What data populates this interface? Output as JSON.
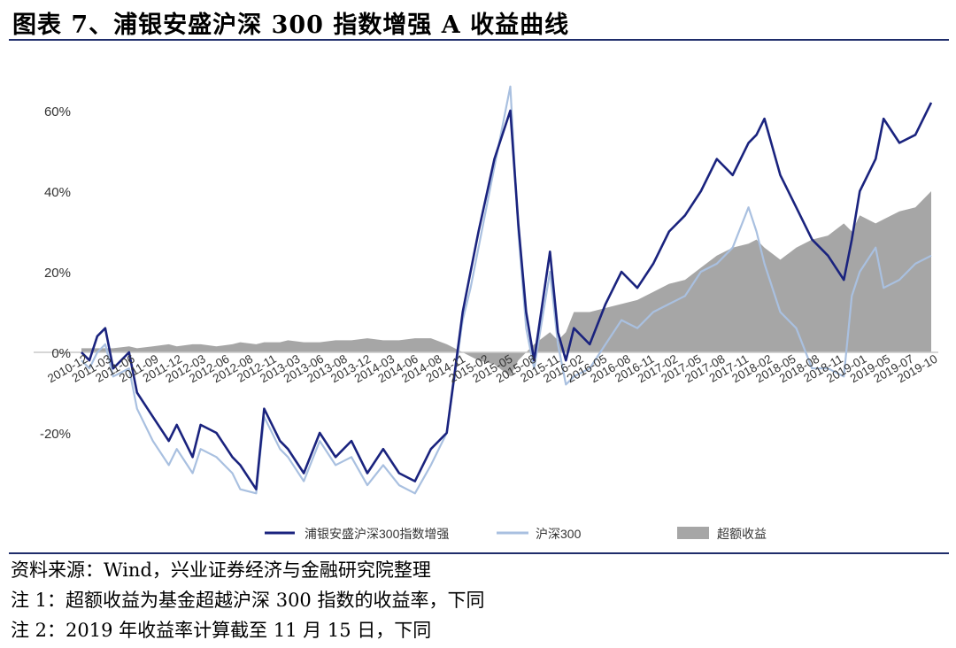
{
  "figure": {
    "title": "图表 7、浦银安盛沪深 300 指数增强 A 收益曲线"
  },
  "notes": {
    "source": "资料来源：Wind，兴业证券经济与金融研究院整理",
    "note1": "注 1：超额收益为基金超越沪深 300 指数的收益率，下同",
    "note2": "注 2：2019 年收益率计算截至 11 月 15 日，下同"
  },
  "colors": {
    "fund": "#1a237e",
    "index": "#a9c0e0",
    "excess": "#a6a6a6"
  },
  "chart_data": {
    "type": "line",
    "title": "",
    "xlabel": "",
    "ylabel": "",
    "ylim": [
      -40,
      70
    ],
    "yticks": [
      60,
      40,
      20,
      0,
      -20
    ],
    "ytick_labels": [
      "60%",
      "40%",
      "20%",
      "0%",
      "-20%"
    ],
    "grid": false,
    "legend_position": "bottom",
    "x_tick_labels": [
      "2010-12",
      "2011-03",
      "2011-06",
      "2011-09",
      "2011-12",
      "2012-03",
      "2012-06",
      "2012-08",
      "2012-11",
      "2013-03",
      "2013-06",
      "2013-08",
      "2013-12",
      "2014-03",
      "2014-06",
      "2014-08",
      "2014-11",
      "2015-02",
      "2015-05",
      "2015-08",
      "2015-11",
      "2016-02",
      "2016-05",
      "2016-08",
      "2016-11",
      "2017-02",
      "2017-05",
      "2017-08",
      "2017-11",
      "2018-02",
      "2018-05",
      "2018-08",
      "2018-11",
      "2019-01",
      "2019-05",
      "2019-07",
      "2019-10"
    ],
    "x": [
      "2010-12",
      "2011-01",
      "2011-02",
      "2011-03",
      "2011-04",
      "2011-06",
      "2011-07",
      "2011-09",
      "2011-11",
      "2011-12",
      "2012-02",
      "2012-03",
      "2012-05",
      "2012-07",
      "2012-08",
      "2012-10",
      "2012-11",
      "2013-01",
      "2013-02",
      "2013-04",
      "2013-06",
      "2013-08",
      "2013-10",
      "2013-12",
      "2014-02",
      "2014-04",
      "2014-06",
      "2014-08",
      "2014-10",
      "2014-11",
      "2014-12",
      "2015-01",
      "2015-02",
      "2015-04",
      "2015-06",
      "2015-07",
      "2015-08",
      "2015-09",
      "2015-11",
      "2015-12",
      "2016-01",
      "2016-02",
      "2016-04",
      "2016-06",
      "2016-08",
      "2016-10",
      "2016-12",
      "2017-02",
      "2017-04",
      "2017-06",
      "2017-08",
      "2017-10",
      "2017-12",
      "2018-01",
      "2018-02",
      "2018-04",
      "2018-06",
      "2018-08",
      "2018-10",
      "2018-12",
      "2019-01",
      "2019-02",
      "2019-04",
      "2019-05",
      "2019-07",
      "2019-09",
      "2019-11"
    ],
    "series": [
      {
        "name": "浦银安盛沪深300指数增强",
        "color": "#1a237e",
        "values": [
          0,
          -2,
          4,
          6,
          -4,
          0,
          -10,
          -16,
          -22,
          -18,
          -26,
          -18,
          -20,
          -26,
          -28,
          -34,
          -14,
          -22,
          -24,
          -30,
          -20,
          -26,
          -22,
          -30,
          -24,
          -30,
          -32,
          -24,
          -20,
          -5,
          10,
          20,
          30,
          48,
          60,
          32,
          10,
          -2,
          25,
          5,
          -2,
          6,
          2,
          12,
          20,
          16,
          22,
          30,
          34,
          40,
          48,
          44,
          52,
          54,
          58,
          44,
          36,
          28,
          24,
          18,
          28,
          40,
          48,
          58,
          52,
          54,
          62
        ]
      },
      {
        "name": "沪深300",
        "color": "#a9c0e0",
        "values": [
          -2,
          -4,
          0,
          2,
          -6,
          -4,
          -14,
          -22,
          -28,
          -24,
          -30,
          -24,
          -26,
          -30,
          -34,
          -35,
          -16,
          -24,
          -26,
          -32,
          -22,
          -28,
          -26,
          -33,
          -28,
          -33,
          -35,
          -28,
          -20,
          -6,
          8,
          16,
          26,
          46,
          66,
          30,
          6,
          -4,
          20,
          2,
          -8,
          -6,
          -4,
          2,
          8,
          6,
          10,
          12,
          14,
          20,
          22,
          26,
          36,
          30,
          22,
          10,
          6,
          -4,
          -4,
          -6,
          14,
          20,
          26,
          16,
          18,
          22,
          24
        ]
      },
      {
        "name": "超额收益",
        "color": "#a6a6a6",
        "values": [
          1,
          1,
          1,
          1,
          1,
          1.5,
          1,
          1.5,
          2,
          1.5,
          2,
          2,
          1.5,
          2,
          2.5,
          2,
          2.5,
          2.5,
          3,
          2.5,
          2.5,
          3,
          3,
          3.5,
          3,
          3,
          3.5,
          3.5,
          2,
          1,
          0,
          -1,
          -2,
          -3,
          -6,
          -2,
          0,
          2,
          5,
          3,
          5,
          10,
          10,
          11,
          12,
          13,
          15,
          17,
          18,
          21,
          24,
          26,
          27,
          28,
          26,
          23,
          26,
          28,
          29,
          32,
          30,
          34,
          32,
          33,
          35,
          36,
          40
        ]
      }
    ]
  }
}
